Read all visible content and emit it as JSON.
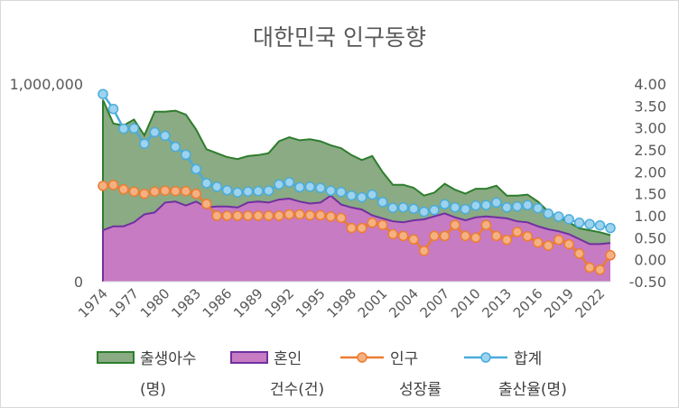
{
  "chart_data": {
    "type": "area",
    "title": "대한민국 인구동향",
    "x": [
      1974,
      1975,
      1976,
      1977,
      1978,
      1979,
      1980,
      1981,
      1982,
      1983,
      1984,
      1985,
      1986,
      1987,
      1988,
      1989,
      1990,
      1991,
      1992,
      1993,
      1994,
      1995,
      1996,
      1997,
      1998,
      1999,
      2000,
      2001,
      2002,
      2003,
      2004,
      2005,
      2006,
      2007,
      2008,
      2009,
      2010,
      2011,
      2012,
      2013,
      2014,
      2015,
      2016,
      2017,
      2018,
      2019,
      2020,
      2021,
      2022,
      2023
    ],
    "x_tick_labels": [
      "1974",
      "1977",
      "1980",
      "1983",
      "1986",
      "1989",
      "1992",
      "1995",
      "1998",
      "2001",
      "2004",
      "2007",
      "2010",
      "2013",
      "2016",
      "2019",
      "2022"
    ],
    "y_left": {
      "ticks": [
        "1,000,000",
        "0"
      ],
      "range": [
        0,
        1000000
      ]
    },
    "y_right": {
      "ticks": [
        "4.00",
        "3.50",
        "3.00",
        "2.50",
        "2.00",
        "1.50",
        "1.00",
        "0.50",
        "0.00",
        "-0.50"
      ],
      "range": [
        -0.5,
        4.0
      ]
    },
    "series": [
      {
        "name": "출생아수",
        "sub_label": "(명)",
        "kind": "area",
        "axis": "left",
        "fill": "#8aab83",
        "stroke": "#2e7d2e",
        "values": [
          920000,
          800000,
          790000,
          820000,
          740000,
          860000,
          860000,
          865000,
          845000,
          770000,
          670000,
          650000,
          630000,
          620000,
          635000,
          640000,
          650000,
          710000,
          730000,
          715000,
          720000,
          710000,
          690000,
          675000,
          640000,
          615000,
          635000,
          555000,
          490000,
          490000,
          475000,
          435000,
          450000,
          495000,
          465000,
          445000,
          470000,
          470000,
          485000,
          435000,
          435000,
          440000,
          405000,
          355000,
          325000,
          300000,
          270000,
          260000,
          250000,
          235000
        ]
      },
      {
        "name": "혼인",
        "sub_label": "건수(건)",
        "kind": "area",
        "axis": "left",
        "fill": "#c77bc3",
        "stroke": "#7030a0",
        "values": [
          260000,
          280000,
          280000,
          300000,
          340000,
          350000,
          400000,
          405000,
          385000,
          405000,
          375000,
          380000,
          380000,
          375000,
          400000,
          405000,
          400000,
          415000,
          420000,
          405000,
          395000,
          400000,
          435000,
          390000,
          375000,
          365000,
          335000,
          320000,
          305000,
          300000,
          310000,
          315000,
          330000,
          345000,
          325000,
          310000,
          325000,
          330000,
          325000,
          320000,
          305000,
          300000,
          280000,
          265000,
          255000,
          240000,
          215000,
          190000,
          190000,
          195000
        ]
      },
      {
        "name": "인구",
        "sub_label": "성장률",
        "kind": "line",
        "axis": "right",
        "color": "#ed7d31",
        "values": [
          1.68,
          1.7,
          1.6,
          1.55,
          1.5,
          1.55,
          1.57,
          1.56,
          1.56,
          1.5,
          1.27,
          1.0,
          1.0,
          1.0,
          1.0,
          1.0,
          1.0,
          1.0,
          1.03,
          1.03,
          1.01,
          1.01,
          0.98,
          0.95,
          0.72,
          0.72,
          0.84,
          0.79,
          0.58,
          0.54,
          0.46,
          0.2,
          0.54,
          0.54,
          0.79,
          0.54,
          0.5,
          0.79,
          0.54,
          0.45,
          0.63,
          0.53,
          0.39,
          0.32,
          0.45,
          0.35,
          0.14,
          -0.18,
          -0.23,
          0.1
        ]
      },
      {
        "name": "합계",
        "sub_label": "출산율(명)",
        "kind": "line",
        "axis": "right",
        "color": "#4aacdb",
        "values": [
          3.77,
          3.43,
          2.98,
          2.99,
          2.64,
          2.9,
          2.82,
          2.57,
          2.39,
          2.06,
          1.74,
          1.66,
          1.58,
          1.53,
          1.55,
          1.56,
          1.57,
          1.71,
          1.76,
          1.65,
          1.66,
          1.63,
          1.57,
          1.54,
          1.46,
          1.42,
          1.48,
          1.31,
          1.18,
          1.19,
          1.16,
          1.09,
          1.13,
          1.26,
          1.19,
          1.15,
          1.23,
          1.24,
          1.3,
          1.19,
          1.21,
          1.24,
          1.17,
          1.05,
          0.98,
          0.92,
          0.84,
          0.81,
          0.78,
          0.72
        ]
      }
    ],
    "legend_position": "bottom",
    "grid": false
  }
}
